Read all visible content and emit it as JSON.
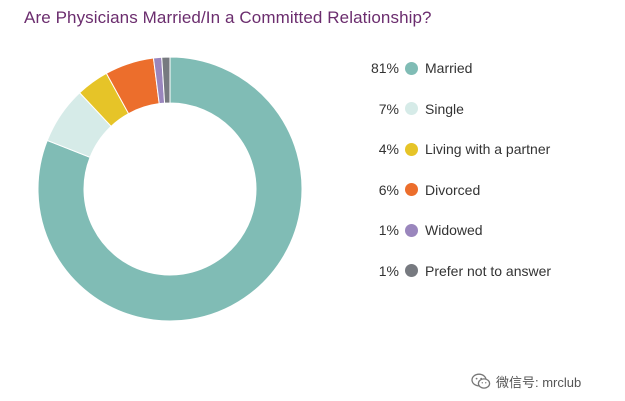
{
  "title": "Are Physicians Married/In a Committed Relationship?",
  "chart_data": {
    "type": "pie",
    "donut": true,
    "title": "Are Physicians Married/In a Committed Relationship?",
    "categories": [
      "Married",
      "Single",
      "Living with a partner",
      "Divorced",
      "Widowed",
      "Prefer not to answer"
    ],
    "values": [
      81,
      7,
      4,
      6,
      1,
      1
    ],
    "value_labels": [
      "81%",
      "7%",
      "4%",
      "6%",
      "1%",
      "1%"
    ],
    "colors": [
      "#80bcb5",
      "#d6ebe8",
      "#e6c428",
      "#ec6e2c",
      "#9a86bd",
      "#777a80"
    ],
    "legend_placement": "right"
  },
  "watermark": {
    "text": "微信号: mrclub",
    "icon": "wechat-icon"
  }
}
